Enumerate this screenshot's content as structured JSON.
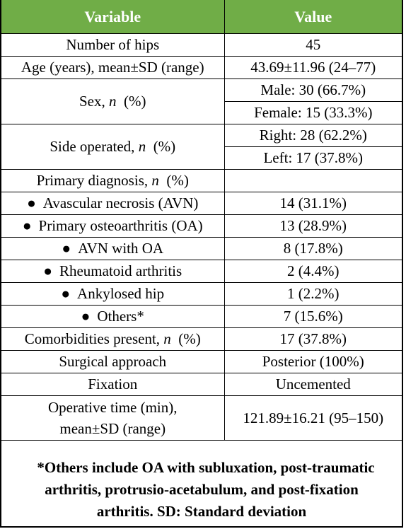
{
  "header": {
    "col1": "Variable",
    "col2": "Value"
  },
  "rows": {
    "hips": {
      "label": "Number of hips",
      "value": "45"
    },
    "age": {
      "label": "Age (years), mean±SD (range)",
      "value": "43.69±11.96 (24–77)"
    },
    "sex": {
      "label_pre": "Sex, ",
      "label_n": "n",
      "label_post": "  (%)",
      "value1": "Male: 30 (66.7%)",
      "value2": "Female: 15 (33.3%)"
    },
    "side": {
      "label_pre": "Side operated, ",
      "label_n": "n",
      "label_post": "  (%)",
      "value1": "Right: 28 (62.2%)",
      "value2": "Left: 17 (37.8%)"
    },
    "diagnosis": {
      "label_pre": "Primary diagnosis, ",
      "label_n": "n",
      "label_post": "  (%)",
      "value": ""
    },
    "avn": {
      "bullet": "●",
      "label": "Avascular necrosis (AVN)",
      "value": "14 (31.1%)"
    },
    "oa": {
      "bullet": "●",
      "label": "Primary osteoarthritis (OA)",
      "value": "13 (28.9%)"
    },
    "avn_oa": {
      "bullet": "●",
      "label": "AVN with OA",
      "value": "8 (17.8%)"
    },
    "ra": {
      "bullet": "●",
      "label": "Rheumatoid arthritis",
      "value": "2 (4.4%)"
    },
    "ankylosed": {
      "bullet": "●",
      "label": "Ankylosed hip",
      "value": "1 (2.2%)"
    },
    "others": {
      "bullet": "●",
      "label": "Others*",
      "value": "7 (15.6%)"
    },
    "comorbid": {
      "label_pre": "Comorbidities present, ",
      "label_n": "n",
      "label_post": "  (%)",
      "value": "17 (37.8%)"
    },
    "approach": {
      "label": "Surgical approach",
      "value": "Posterior (100%)"
    },
    "fixation": {
      "label": "Fixation",
      "value": "Uncemented"
    },
    "optime": {
      "label_line1": "Operative time (min),",
      "label_line2": "mean±SD (range)",
      "value": "121.89±16.21 (95–150)"
    }
  },
  "footnote": {
    "line1": "*Others include OA with subluxation, post-traumatic",
    "line2": "arthritis, protrusio-acetabulum, and post-fixation",
    "line3": "arthritis. SD: Standard deviation"
  },
  "colors": {
    "header_bg": "#70ad47",
    "header_text": "#ffffff",
    "border": "#000000"
  }
}
